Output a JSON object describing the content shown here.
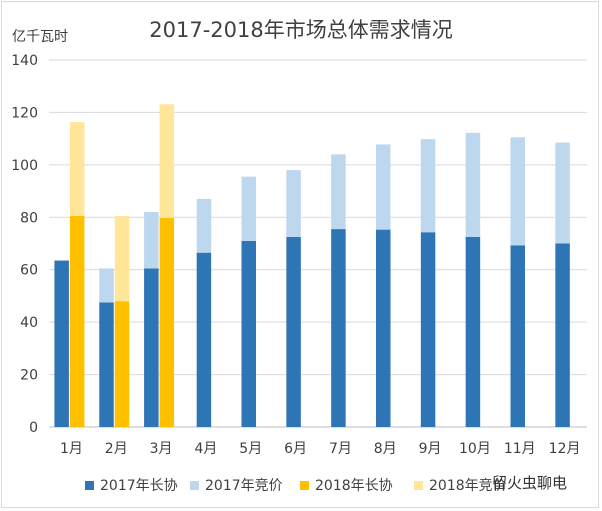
{
  "chart_data": {
    "type": "bar",
    "title": "2017-2018年市场总体需求情况",
    "ylabel": "亿千瓦时",
    "xlabel": "",
    "ylim": [
      0,
      140
    ],
    "yticks": [
      0,
      20,
      40,
      60,
      80,
      100,
      120,
      140
    ],
    "categories": [
      "1月",
      "2月",
      "3月",
      "4月",
      "5月",
      "6月",
      "7月",
      "8月",
      "9月",
      "10月",
      "11月",
      "12月"
    ],
    "series": [
      {
        "name": "2017年长协",
        "color": "#2e75b6",
        "group": "2017",
        "values": [
          63.5,
          47.5,
          60.5,
          66.5,
          71,
          72.5,
          75.5,
          75.3,
          74.3,
          72.5,
          69.3,
          70
        ]
      },
      {
        "name": "2017年竞价",
        "color": "#bdd7ee",
        "group": "2017",
        "values": [
          0,
          13,
          21.5,
          20.5,
          24.5,
          25.5,
          28.5,
          32.5,
          35.5,
          39.7,
          41.2,
          38.5
        ]
      },
      {
        "name": "2018年长协",
        "color": "#ffc000",
        "group": "2018",
        "values": [
          80.5,
          48,
          79.8,
          null,
          null,
          null,
          null,
          null,
          null,
          null,
          null,
          null
        ]
      },
      {
        "name": "2018年竞价",
        "color": "#ffe699",
        "group": "2018",
        "values": [
          35.8,
          32.5,
          43.3,
          null,
          null,
          null,
          null,
          null,
          null,
          null,
          null,
          null
        ]
      }
    ],
    "stacked": true,
    "grid": true,
    "legend": "bottom"
  },
  "watermark": "留火虫聊电"
}
